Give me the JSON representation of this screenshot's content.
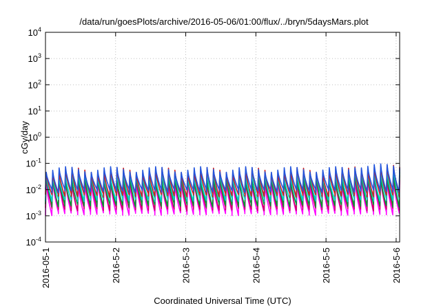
{
  "chart_data": {
    "type": "line",
    "title": "/data/run/goesPlots/archive/2016-05-06/01:00/flux/../bryn/5daysMars.plot",
    "xlabel": "Coordinated Universal Time (UTC)",
    "ylabel": "cGy/day",
    "yscale": "log",
    "ylim": [
      0.0001,
      10000
    ],
    "xlim": [
      0,
      5.05
    ],
    "y_ticks": [
      {
        "base": "10",
        "exp": "4",
        "value": 10000
      },
      {
        "base": "10",
        "exp": "3",
        "value": 1000
      },
      {
        "base": "10",
        "exp": "2",
        "value": 100
      },
      {
        "base": "10",
        "exp": "1",
        "value": 10
      },
      {
        "base": "10",
        "exp": "0",
        "value": 1
      },
      {
        "base": "10",
        "exp": "-1",
        "value": 0.1
      },
      {
        "base": "10",
        "exp": "-2",
        "value": 0.01
      },
      {
        "base": "10",
        "exp": "-3",
        "value": 0.001
      },
      {
        "base": "10",
        "exp": "-4",
        "value": 0.0001
      }
    ],
    "x_ticks": [
      {
        "label": "2016-05-1",
        "value": 0
      },
      {
        "label": "2016-5-2",
        "value": 1
      },
      {
        "label": "2016-5-3",
        "value": 2
      },
      {
        "label": "2016-5-4",
        "value": 3
      },
      {
        "label": "2016-5-5",
        "value": 4
      },
      {
        "label": "2016-5-6",
        "value": 5
      }
    ],
    "grid": true,
    "legend": "none",
    "cycles_per_day": 10.9,
    "cycle_days": 0.0917,
    "series": [
      {
        "color": "#ff00ff",
        "peak": 0.02,
        "trough": 0.0012
      },
      {
        "color": "#cc0066",
        "peak": 0.025,
        "trough": 0.0018
      },
      {
        "color": "#009933",
        "peak": 0.03,
        "trough": 0.0025
      },
      {
        "color": "#00cccc",
        "peak": 0.04,
        "trough": 0.004
      },
      {
        "color": "#cc2222",
        "peak": 0.055,
        "trough": 0.006
      },
      {
        "color": "#2255dd",
        "peak": 0.06,
        "trough": 0.009
      }
    ]
  }
}
